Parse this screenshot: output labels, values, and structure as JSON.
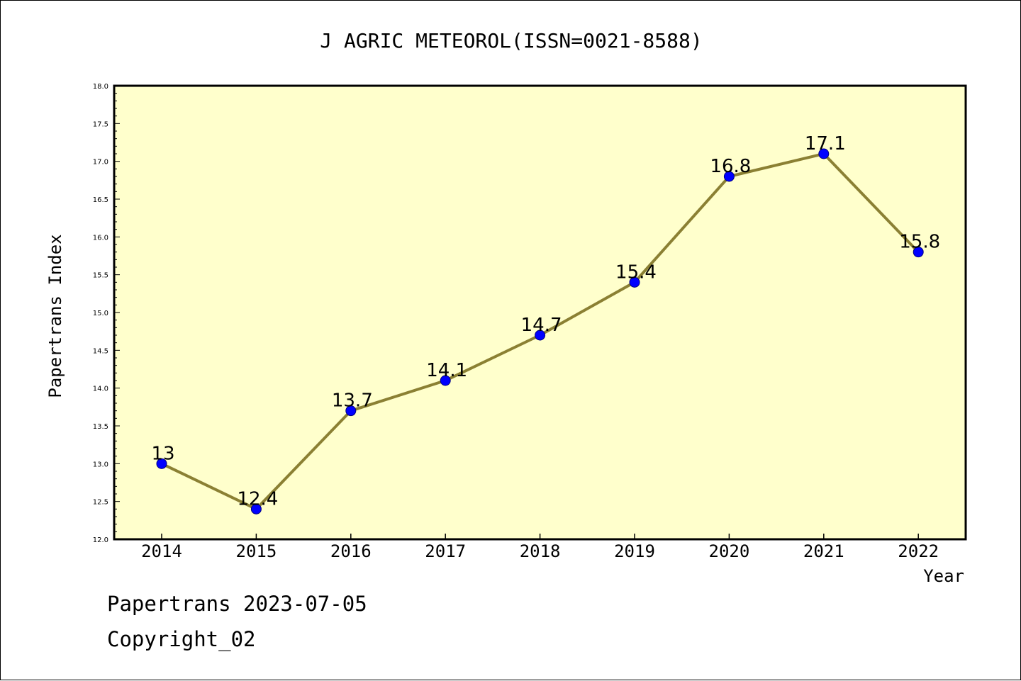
{
  "chart_data": {
    "type": "line",
    "title": "J AGRIC METEOROL(ISSN=0021-8588)",
    "xlabel": "Year",
    "ylabel": "Papertrans Index",
    "categories": [
      "2014",
      "2015",
      "2016",
      "2017",
      "2018",
      "2019",
      "2020",
      "2021",
      "2022"
    ],
    "series": [
      {
        "values": [
          13,
          12.4,
          13.7,
          14.1,
          14.7,
          15.4,
          16.8,
          17.1,
          15.8
        ]
      }
    ],
    "data_labels": [
      "13",
      "12.4",
      "13.7",
      "14.1",
      "14.7",
      "15.4",
      "16.8",
      "17.1",
      "15.8"
    ],
    "ylim": [
      12.0,
      18.0
    ],
    "yticks": [
      "12.0",
      "12.5",
      "13.0",
      "13.5",
      "14.0",
      "14.5",
      "15.0",
      "15.5",
      "16.0",
      "16.5",
      "17.0",
      "17.5",
      "18.0"
    ],
    "grid": false,
    "colors": {
      "plot_background": "#ffffcc",
      "line": "#8b8033",
      "marker": "#0000ff"
    }
  },
  "footer": {
    "line1": "Papertrans 2023-07-05",
    "line2": "Copyright_02"
  }
}
